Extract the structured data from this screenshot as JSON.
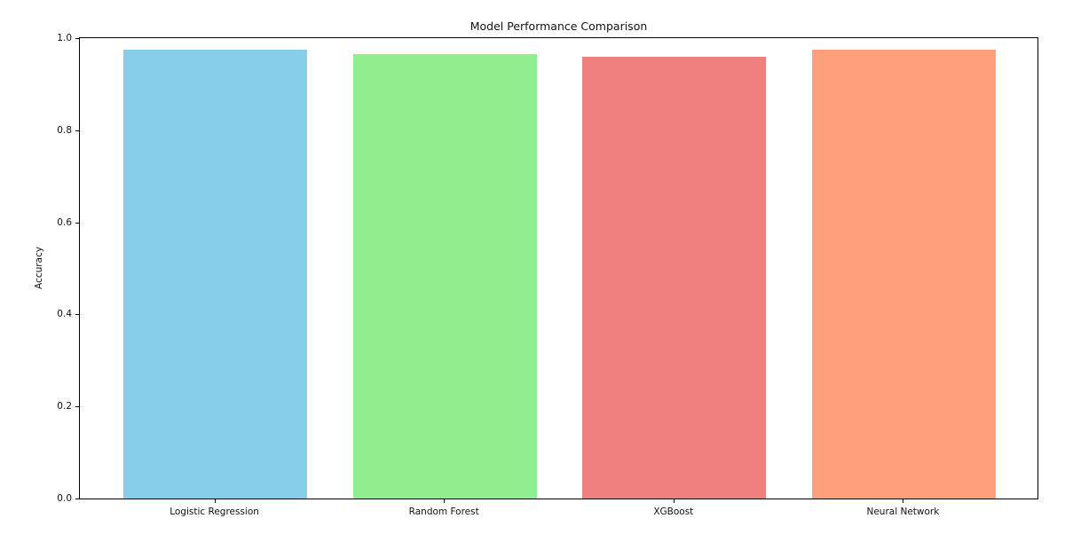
{
  "figure": {
    "background": "#ffffff",
    "spine_color": "#000000",
    "text_color": "#111111"
  },
  "chart_data": {
    "type": "bar",
    "title": "Model Performance Comparison",
    "xlabel": "",
    "ylabel": "Accuracy",
    "categories": [
      "Logistic Regression",
      "Random Forest",
      "XGBoost",
      "Neural Network"
    ],
    "values": [
      0.975,
      0.966,
      0.96,
      0.975
    ],
    "colors": [
      "#87CEEB",
      "#90EE90",
      "#F08080",
      "#FFA07A"
    ],
    "ylim": [
      0.0,
      1.0
    ],
    "yticks": [
      0.0,
      0.2,
      0.4,
      0.6,
      0.8,
      1.0
    ],
    "ytick_labels": [
      "0.0",
      "0.2",
      "0.4",
      "0.6",
      "0.8",
      "1.0"
    ],
    "grid": false,
    "legend": "none",
    "bar_width_fraction": 0.8
  }
}
